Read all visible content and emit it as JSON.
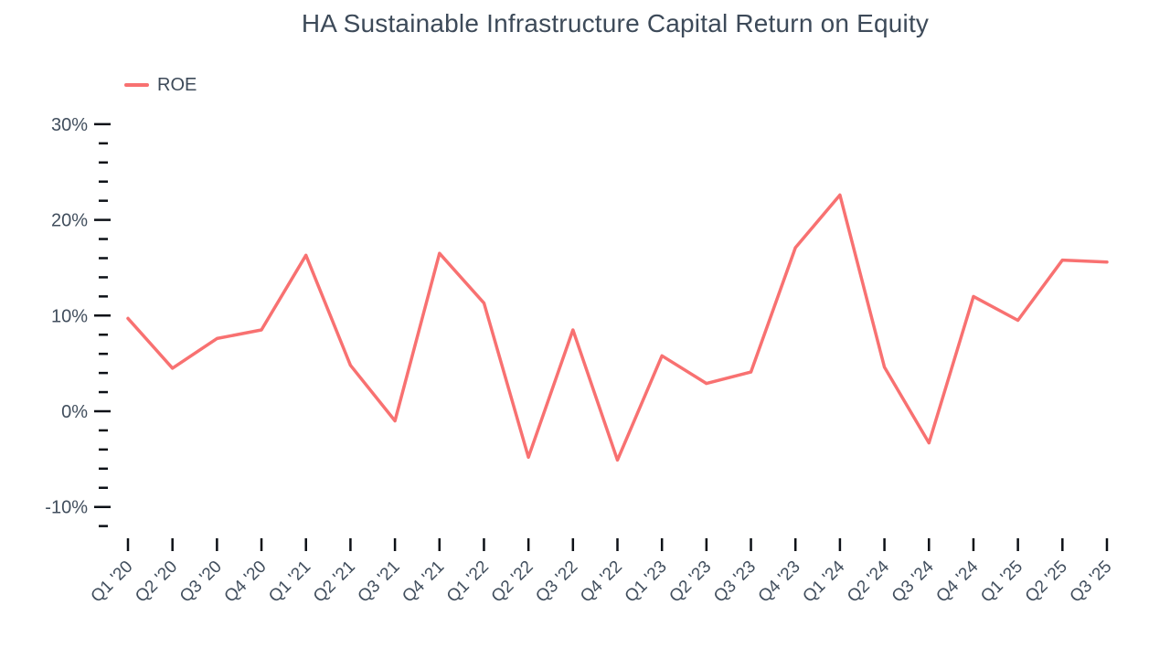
{
  "chart_data": {
    "type": "line",
    "title": "HA Sustainable Infrastructure Capital Return on Equity",
    "xlabel": "",
    "ylabel": "",
    "grid": false,
    "legend_position": "top-left",
    "categories": [
      "Q1 '20",
      "Q2 '20",
      "Q3 '20",
      "Q4 '20",
      "Q1 '21",
      "Q2 '21",
      "Q3 '21",
      "Q4 '21",
      "Q1 '22",
      "Q2 '22",
      "Q3 '22",
      "Q4 '22",
      "Q1 '23",
      "Q2 '23",
      "Q3 '23",
      "Q4 '23",
      "Q1 '24",
      "Q2 '24",
      "Q3 '24",
      "Q4 '24",
      "Q1 '25",
      "Q2 '25",
      "Q3 '25"
    ],
    "series": [
      {
        "name": "ROE",
        "color": "#f87171",
        "values": [
          9.7,
          4.5,
          7.6,
          8.5,
          16.3,
          4.8,
          -1.0,
          16.5,
          11.3,
          -4.8,
          8.5,
          -5.1,
          5.8,
          2.9,
          4.1,
          17.1,
          22.6,
          4.6,
          -3.3,
          12.0,
          9.5,
          15.8,
          15.6
        ]
      }
    ],
    "y_axis": {
      "unit": "%",
      "major_ticks": [
        30,
        20,
        10,
        0,
        -10
      ],
      "major_tick_labels": [
        "30%",
        "20%",
        "10%",
        "0%",
        "-10%"
      ],
      "minor_tick_step": 2,
      "range": [
        -12,
        30
      ]
    },
    "colors": {
      "line": "#f87171",
      "title_text": "#3d4a59",
      "axis_label_text": "#414e5d",
      "tick_mark": "#0d1117"
    }
  }
}
